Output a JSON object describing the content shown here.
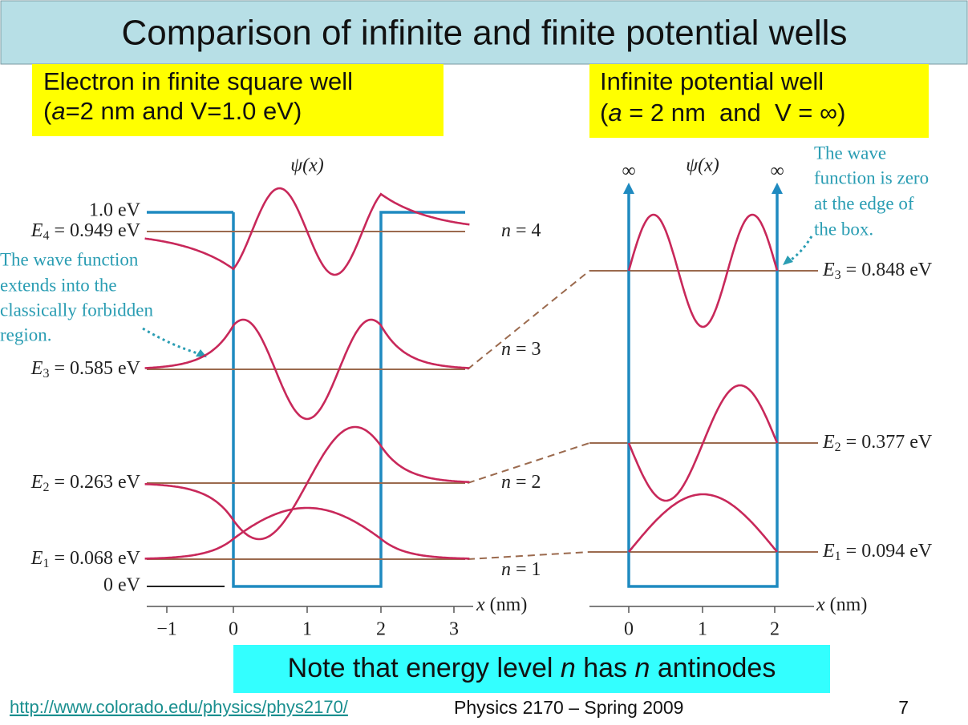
{
  "title": "Comparison of infinite and finite potential wells",
  "left_box": {
    "line1": "Electron in finite square well",
    "line2": [
      "(",
      "a",
      "=2 nm and V=1.0 eV)"
    ]
  },
  "right_box": {
    "line1": "Infinite potential well",
    "line2": [
      "(",
      "a",
      " = 2 nm  and  V = ∞)"
    ]
  },
  "finite_well": {
    "psi_label": "ψ(x)",
    "v_label": "1.0 eV",
    "levels": [
      {
        "symbol": "E",
        "sub": "4",
        "value": " = 0.949 eV",
        "n": "n",
        "n_value": " = 4"
      },
      {
        "symbol": "E",
        "sub": "3",
        "value": " = 0.585 eV",
        "n": "n",
        "n_value": " = 3"
      },
      {
        "symbol": "E",
        "sub": "2",
        "value": " = 0.263 eV",
        "n": "n",
        "n_value": " = 2"
      },
      {
        "symbol": "E",
        "sub": "1",
        "value": " = 0.068 eV",
        "n": "n",
        "n_value": " = 1"
      }
    ],
    "zero_label": "0 eV",
    "annotation": [
      "The wave function",
      "extends into the",
      "classically forbidden",
      "region."
    ],
    "x_ticks": [
      "−1",
      "0",
      "1",
      "2",
      "3"
    ],
    "x_label": [
      "x",
      " (nm)"
    ]
  },
  "infinite_well": {
    "psi_label": "ψ(x)",
    "infinity_left": "∞",
    "infinity_right": "∞",
    "annotation": [
      "The wave",
      "function is zero",
      "at the edge of",
      "the box."
    ],
    "levels": [
      {
        "symbol": "E",
        "sub": "3",
        "value": " = 0.848 eV"
      },
      {
        "symbol": "E",
        "sub": "2",
        "value": " = 0.377 eV"
      },
      {
        "symbol": "E",
        "sub": "1",
        "value": " = 0.094 eV"
      }
    ],
    "x_ticks": [
      "0",
      "1",
      "2"
    ],
    "x_label": [
      "x",
      " (nm)"
    ]
  },
  "note": [
    "Note that energy level ",
    "n",
    " has ",
    "n",
    " antinodes"
  ],
  "footer": {
    "url": "http://www.colorado.edu/physics/phys2170/",
    "course": "Physics 2170 – Spring 2009",
    "page": "7"
  }
}
